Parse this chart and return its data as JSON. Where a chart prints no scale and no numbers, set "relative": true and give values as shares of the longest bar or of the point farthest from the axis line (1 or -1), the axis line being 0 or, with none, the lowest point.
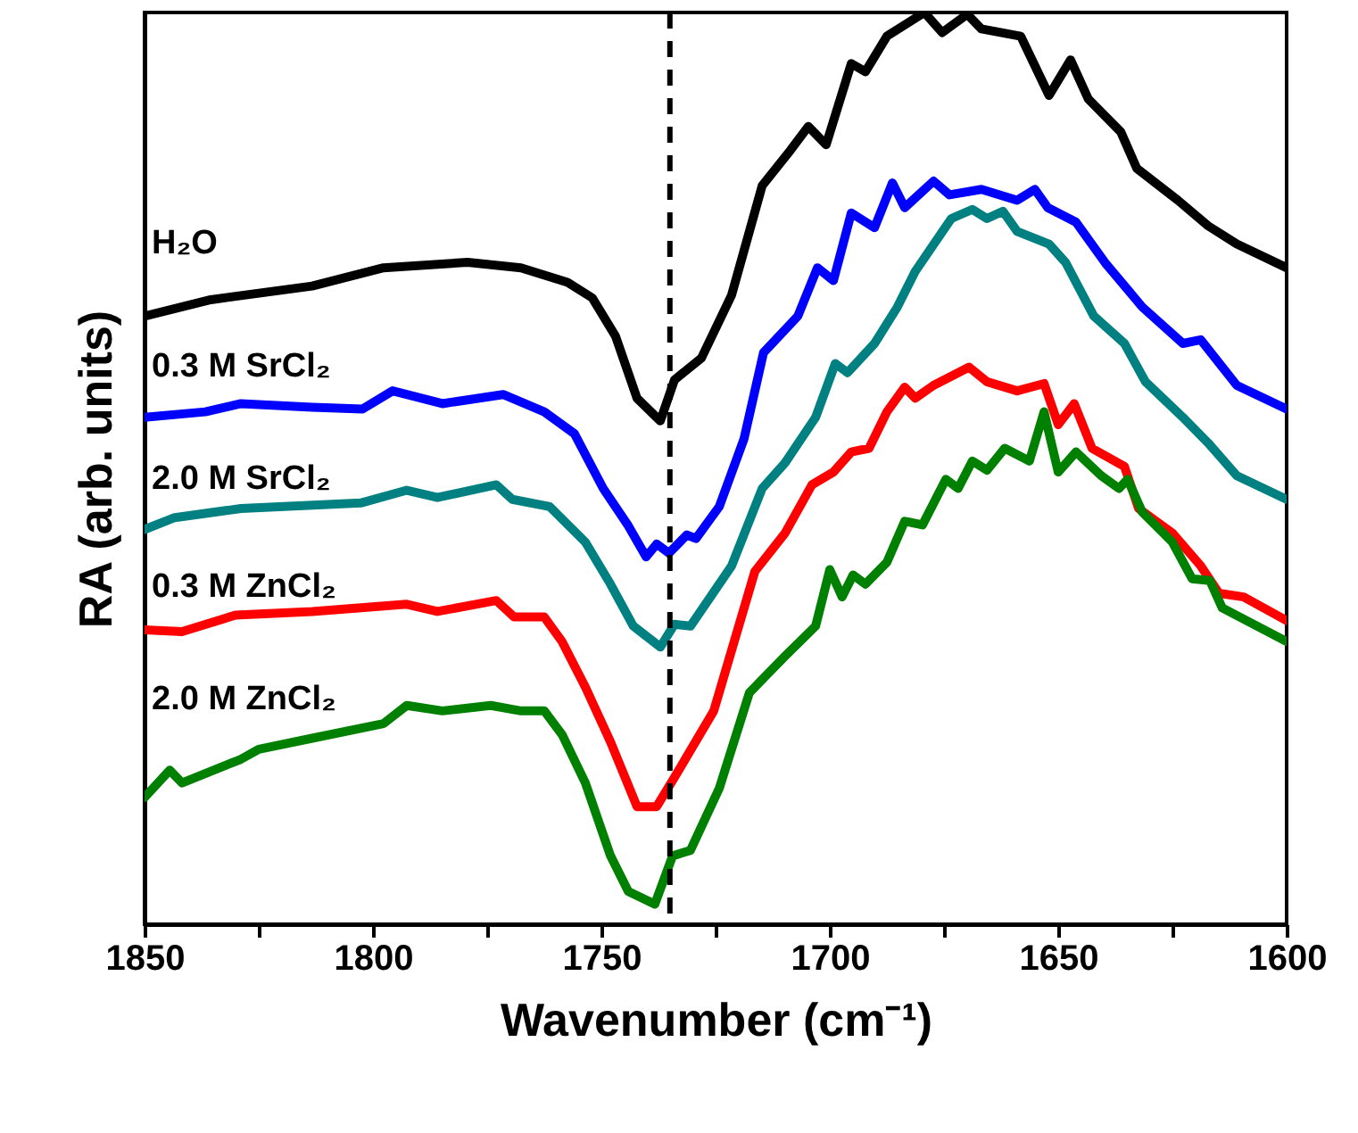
{
  "chart_data": {
    "type": "line",
    "xlabel": "Wavenumber (cm⁻¹)",
    "ylabel": "RA (arb. units)",
    "relative": true,
    "xlim": [
      1850,
      1600
    ],
    "xticks": [
      1850,
      {
        "value": 1825,
        "label": null
      },
      1800,
      {
        "value": 1775,
        "label": null
      },
      1750,
      {
        "value": 1725,
        "label": null
      },
      1700,
      {
        "value": 1675,
        "label": null
      },
      1650,
      {
        "value": 1625,
        "label": null
      },
      1600
    ],
    "ref_lines": [
      {
        "axis": "x",
        "value": 1735,
        "color": "#000000",
        "line_style": "dashed"
      }
    ],
    "series": [
      {
        "name": "H₂O",
        "color": "#000000",
        "x": [
          1850,
          1835.5,
          1813.3,
          1797.7,
          1779.3,
          1767.6,
          1757.4,
          1752.0,
          1746.9,
          1742.2,
          1737.1,
          1734.0,
          1728.1,
          1721.5,
          1714.8,
          1708.6,
          1704.7,
          1700.8,
          1695.3,
          1692.2,
          1687.5,
          1679.3,
          1675.4,
          1669.9,
          1666.8,
          1658.2,
          1652.0,
          1647.3,
          1643.4,
          1636.3,
          1632.8,
          1623.8,
          1617.2,
          1610.9,
          1600
        ],
        "values": [
          0.667,
          0.685,
          0.7,
          0.72,
          0.726,
          0.72,
          0.704,
          0.687,
          0.645,
          0.577,
          0.552,
          0.597,
          0.621,
          0.69,
          0.81,
          0.849,
          0.875,
          0.855,
          0.944,
          0.935,
          0.974,
          1.0,
          0.978,
          0.998,
          0.982,
          0.974,
          0.909,
          0.948,
          0.905,
          0.869,
          0.829,
          0.794,
          0.766,
          0.746,
          0.72
        ]
      },
      {
        "name": "0.3 M SrCl₂",
        "color": "#0000ff",
        "x": [
          1850,
          1836.7,
          1828.9,
          1813.3,
          1802.3,
          1795.7,
          1784.8,
          1771.5,
          1762.5,
          1755.9,
          1749.6,
          1744.1,
          1740.2,
          1737.9,
          1735.2,
          1731.3,
          1729.3,
          1724.2,
          1718.8,
          1714.5,
          1707.0,
          1702.7,
          1699.2,
          1695.3,
          1690.2,
          1686.3,
          1683.6,
          1677.3,
          1673.8,
          1666.8,
          1659.0,
          1655.1,
          1652.3,
          1646.1,
          1639.5,
          1631.6,
          1622.7,
          1618.8,
          1610.9,
          1600
        ],
        "values": [
          0.556,
          0.562,
          0.571,
          0.567,
          0.565,
          0.585,
          0.571,
          0.581,
          0.562,
          0.538,
          0.478,
          0.437,
          0.403,
          0.417,
          0.407,
          0.427,
          0.423,
          0.458,
          0.532,
          0.627,
          0.667,
          0.72,
          0.706,
          0.78,
          0.764,
          0.813,
          0.786,
          0.815,
          0.8,
          0.806,
          0.794,
          0.806,
          0.786,
          0.77,
          0.724,
          0.677,
          0.637,
          0.641,
          0.591,
          0.565
        ]
      },
      {
        "name": "2.0 M SrCl₂",
        "color": "#008080",
        "x": [
          1850,
          1843.4,
          1828.9,
          1802.7,
          1792.6,
          1785.9,
          1773.0,
          1769.5,
          1761.3,
          1753.5,
          1748.0,
          1743.0,
          1737.1,
          1734.0,
          1730.5,
          1721.5,
          1714.8,
          1709.8,
          1703.1,
          1698.8,
          1696.1,
          1690.2,
          1685.2,
          1681.3,
          1673.4,
          1668.8,
          1665.6,
          1662.1,
          1659.0,
          1652.0,
          1648.4,
          1642.2,
          1635.5,
          1630.9,
          1622.7,
          1617.2,
          1610.9,
          1600
        ],
        "values": [
          0.433,
          0.446,
          0.456,
          0.462,
          0.476,
          0.468,
          0.482,
          0.466,
          0.458,
          0.419,
          0.373,
          0.327,
          0.304,
          0.329,
          0.327,
          0.393,
          0.478,
          0.506,
          0.556,
          0.615,
          0.605,
          0.637,
          0.677,
          0.716,
          0.774,
          0.784,
          0.774,
          0.782,
          0.76,
          0.746,
          0.726,
          0.667,
          0.637,
          0.595,
          0.556,
          0.528,
          0.492,
          0.466
        ]
      },
      {
        "name": "0.3 M ZnCl₂",
        "color": "#ff0000",
        "x": [
          1850,
          1841.8,
          1830.1,
          1813.3,
          1792.6,
          1785.9,
          1773.0,
          1769.1,
          1762.5,
          1758.6,
          1753.5,
          1748.0,
          1742.2,
          1737.9,
          1734.0,
          1725.4,
          1716.4,
          1709.8,
          1703.9,
          1699.2,
          1695.3,
          1691.4,
          1687.5,
          1683.6,
          1681.3,
          1677.3,
          1669.5,
          1665.6,
          1659.0,
          1653.1,
          1650.0,
          1646.5,
          1642.6,
          1635.5,
          1632.4,
          1625.0,
          1618.8,
          1614.8,
          1609.4,
          1600
        ],
        "values": [
          0.323,
          0.321,
          0.339,
          0.343,
          0.351,
          0.343,
          0.355,
          0.337,
          0.337,
          0.31,
          0.26,
          0.2,
          0.129,
          0.129,
          0.161,
          0.234,
          0.387,
          0.429,
          0.482,
          0.496,
          0.518,
          0.522,
          0.562,
          0.589,
          0.577,
          0.591,
          0.611,
          0.595,
          0.585,
          0.593,
          0.548,
          0.571,
          0.522,
          0.502,
          0.456,
          0.429,
          0.393,
          0.363,
          0.359,
          0.333
        ]
      },
      {
        "name": "2.0 M ZnCl₂",
        "color": "#008000",
        "x": [
          1850,
          1844.5,
          1841.8,
          1828.9,
          1825.0,
          1813.3,
          1797.7,
          1792.6,
          1784.8,
          1774.2,
          1767.6,
          1762.5,
          1758.6,
          1753.5,
          1748.0,
          1744.1,
          1738.3,
          1734.4,
          1730.5,
          1724.2,
          1717.6,
          1709.8,
          1703.1,
          1700.0,
          1697.3,
          1694.9,
          1692.2,
          1687.5,
          1683.6,
          1679.7,
          1674.6,
          1671.9,
          1668.8,
          1665.6,
          1661.7,
          1656.3,
          1653.1,
          1650.0,
          1646.1,
          1640.6,
          1636.7,
          1634.8,
          1631.6,
          1625.0,
          1620.7,
          1616.8,
          1614.1,
          1600
        ],
        "values": [
          0.139,
          0.169,
          0.155,
          0.181,
          0.192,
          0.204,
          0.22,
          0.24,
          0.234,
          0.24,
          0.234,
          0.234,
          0.208,
          0.155,
          0.075,
          0.036,
          0.022,
          0.075,
          0.081,
          0.149,
          0.254,
          0.294,
          0.327,
          0.389,
          0.359,
          0.383,
          0.373,
          0.397,
          0.442,
          0.438,
          0.488,
          0.478,
          0.508,
          0.498,
          0.522,
          0.508,
          0.562,
          0.496,
          0.518,
          0.492,
          0.478,
          0.488,
          0.452,
          0.419,
          0.379,
          0.377,
          0.347,
          0.31
        ]
      }
    ]
  }
}
